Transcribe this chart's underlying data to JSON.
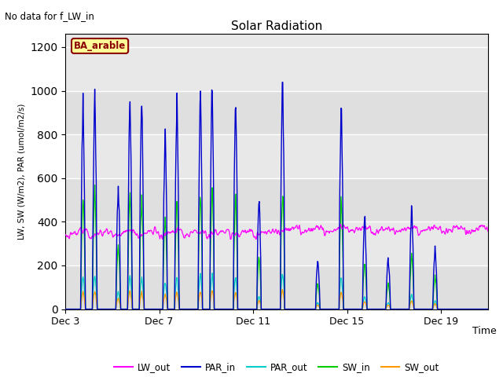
{
  "title": "Solar Radiation",
  "note": "No data for f_LW_in",
  "label_box": "BA_arable",
  "ylabel": "LW, SW (W/m2), PAR (umol/m2/s)",
  "xlabel": "Time",
  "xtick_labels": [
    "Dec 3",
    "Dec 7",
    "Dec 11",
    "Dec 15",
    "Dec 19"
  ],
  "xtick_positions": [
    0,
    4,
    8,
    12,
    16
  ],
  "ylim": [
    0,
    1260
  ],
  "yticks": [
    0,
    200,
    400,
    600,
    800,
    1000,
    1200
  ],
  "xlim": [
    0,
    18
  ],
  "bg_color": "#e8e8e8",
  "fig_color": "#ffffff",
  "legend_entries": [
    "LW_out",
    "PAR_in",
    "PAR_out",
    "SW_in",
    "SW_out"
  ],
  "legend_colors": [
    "#ff00ff",
    "#0000cd",
    "#00cccc",
    "#00cc00",
    "#ff9900"
  ],
  "line_colors": {
    "LW_out": "#ff00ff",
    "PAR_in": "#0000cd",
    "PAR_out": "#00cccc",
    "SW_in": "#00cc00",
    "SW_out": "#ff9900"
  },
  "par_in_peaks": [
    0,
    980,
    1005,
    0,
    590,
    1000,
    960,
    0,
    840,
    960,
    0,
    1025,
    1030,
    0,
    960,
    0,
    500,
    0,
    1060,
    0,
    0,
    230,
    0,
    960,
    0,
    430,
    0,
    240,
    0,
    480,
    0,
    280,
    0,
    0,
    0,
    0
  ],
  "sw_in_peaks": [
    0,
    540,
    555,
    0,
    300,
    550,
    520,
    0,
    450,
    520,
    0,
    555,
    560,
    0,
    520,
    0,
    250,
    0,
    575,
    0,
    0,
    120,
    0,
    520,
    0,
    220,
    0,
    120,
    0,
    250,
    0,
    150,
    0,
    0,
    0,
    0
  ],
  "sw_out_peaks": [
    0,
    80,
    85,
    0,
    50,
    85,
    80,
    0,
    70,
    80,
    0,
    85,
    87,
    0,
    80,
    0,
    40,
    0,
    88,
    0,
    0,
    20,
    0,
    80,
    0,
    35,
    0,
    20,
    0,
    40,
    0,
    25,
    0,
    0,
    0,
    0
  ],
  "par_out_peaks": [
    0,
    150,
    160,
    0,
    80,
    160,
    150,
    0,
    130,
    150,
    0,
    165,
    165,
    0,
    150,
    0,
    60,
    0,
    170,
    0,
    0,
    30,
    0,
    150,
    0,
    60,
    0,
    30,
    0,
    70,
    0,
    40,
    0,
    0,
    0,
    0
  ],
  "n_days": 18,
  "n_points_per_day": 48,
  "lw_base_first": 330,
  "lw_base_second": 345,
  "lw_variation": 30,
  "lw_noise": 12
}
